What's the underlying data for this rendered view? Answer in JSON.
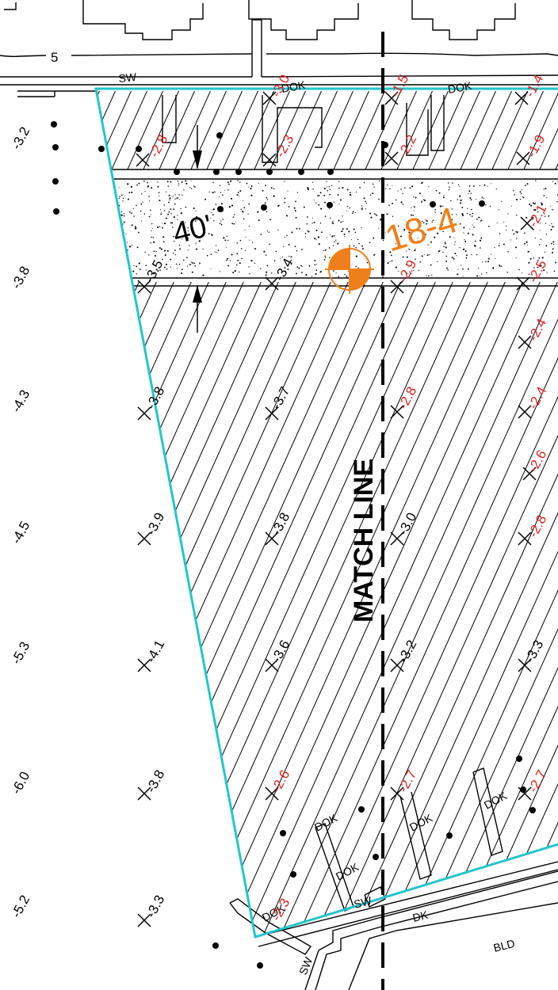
{
  "title": "",
  "colors": {
    "boundary": "#22c6cc",
    "elevation_red": "#e02020",
    "benchmark_orange": "#ef7f1a",
    "linework": "#000000"
  },
  "labels": {
    "contour_5": "5",
    "dimension": "40'",
    "survey_tag": "18-4",
    "match_line": "MATCH LINE",
    "sw_top": "SW",
    "dok_top1": "DOK",
    "dok_top2": "DOK",
    "dok_b1": "DOK",
    "dok_b2": "DOK",
    "dok_b3": "DOK",
    "dok_b4": "DOK",
    "dok_b5": "DOK",
    "sw_bottom": "SW",
    "sw_left": "SW",
    "dk": "DK",
    "bld": "BLD"
  },
  "left_column_elevations": [
    "-3.2",
    "-3.8",
    "-4.3",
    "-4.5",
    "-5.3",
    "-6.0",
    "-5.2"
  ],
  "black_spot_elevations": [
    "-3.8",
    "-3.9",
    "-4.1",
    "-3.8",
    "-3.3",
    "-3.5",
    "-3.4",
    "-3.7",
    "-3.8",
    "-3.6",
    "-3.0",
    "-3.2",
    "-3.3"
  ],
  "red_spot_elevations": [
    "-3.0",
    "-1.5",
    "-1.4",
    "-2.8",
    "-2.3",
    "-2.2",
    "-1.9",
    "-2.1",
    "-2.9",
    "-2.5",
    "-2.4",
    "-2.8",
    "-2.4",
    "-2.6",
    "-2.8",
    "-2.6",
    "-2.7",
    "-2.7",
    "-2.3"
  ]
}
